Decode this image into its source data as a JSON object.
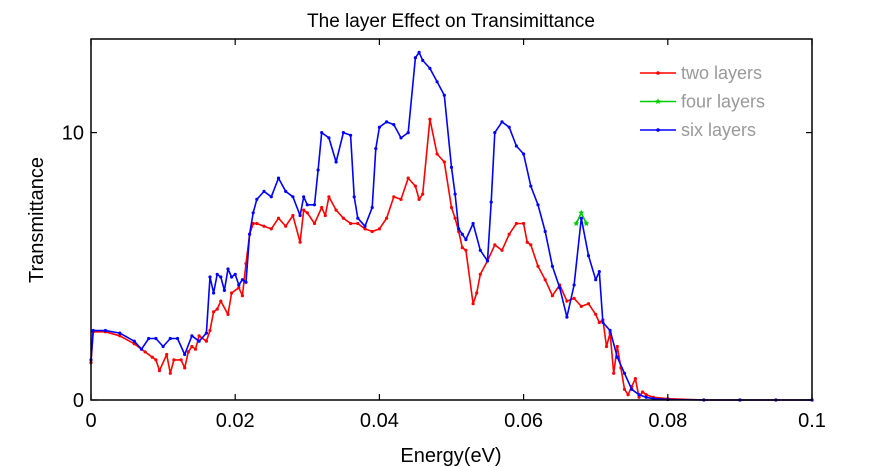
{
  "chart_data": {
    "type": "line",
    "title": "The layer Effect on Transimittance",
    "xlabel": "Energy(eV)",
    "ylabel": "Transmittance",
    "xlim": [
      0,
      0.1
    ],
    "ylim": [
      0,
      13.5
    ],
    "xticks": [
      {
        "value": 0,
        "label": "0"
      },
      {
        "value": 0.02,
        "label": "0.02"
      },
      {
        "value": 0.04,
        "label": "0.04"
      },
      {
        "value": 0.06,
        "label": "0.06"
      },
      {
        "value": 0.08,
        "label": "0.08"
      },
      {
        "value": 0.1,
        "label": "0.1"
      }
    ],
    "yticks": [
      {
        "value": 0,
        "label": "0"
      },
      {
        "value": 10,
        "label": "10"
      }
    ],
    "grid": false,
    "legend_position": "top-right",
    "series": [
      {
        "name": "two layers",
        "color": "#ff0000",
        "marker": "dot",
        "x": [
          0,
          0.0003,
          0.002,
          0.004,
          0.006,
          0.0075,
          0.0085,
          0.009,
          0.0095,
          0.0105,
          0.011,
          0.0115,
          0.0125,
          0.013,
          0.0135,
          0.014,
          0.0145,
          0.015,
          0.016,
          0.0165,
          0.017,
          0.0175,
          0.018,
          0.019,
          0.0195,
          0.0205,
          0.021,
          0.0215,
          0.022,
          0.0225,
          0.023,
          0.024,
          0.025,
          0.026,
          0.027,
          0.028,
          0.029,
          0.0295,
          0.03,
          0.031,
          0.032,
          0.0325,
          0.033,
          0.034,
          0.035,
          0.036,
          0.037,
          0.038,
          0.039,
          0.04,
          0.041,
          0.042,
          0.043,
          0.044,
          0.045,
          0.0455,
          0.046,
          0.047,
          0.048,
          0.049,
          0.05,
          0.0505,
          0.051,
          0.0515,
          0.052,
          0.053,
          0.0535,
          0.054,
          0.055,
          0.056,
          0.057,
          0.058,
          0.059,
          0.06,
          0.0605,
          0.061,
          0.062,
          0.063,
          0.064,
          0.065,
          0.066,
          0.067,
          0.068,
          0.069,
          0.07,
          0.0705,
          0.071,
          0.0715,
          0.072,
          0.0725,
          0.073,
          0.0735,
          0.074,
          0.0745,
          0.075,
          0.0755,
          0.076,
          0.0765,
          0.077,
          0.078,
          0.08,
          0.085,
          0.09,
          0.095,
          0.1
        ],
        "y": [
          1.4,
          2.55,
          2.55,
          2.4,
          2.1,
          1.8,
          1.6,
          1.5,
          1.1,
          1.7,
          1.0,
          1.5,
          1.5,
          1.2,
          1.8,
          2.0,
          1.9,
          2.4,
          2.2,
          2.6,
          3.3,
          3.4,
          3.7,
          3.2,
          4.0,
          4.2,
          3.9,
          5.1,
          6.2,
          6.6,
          6.6,
          6.5,
          6.4,
          6.8,
          6.5,
          6.9,
          5.9,
          7.1,
          7.0,
          6.6,
          7.2,
          6.9,
          7.6,
          7.1,
          6.8,
          6.6,
          6.6,
          6.4,
          6.3,
          6.4,
          6.8,
          7.6,
          7.5,
          8.3,
          8.0,
          7.5,
          7.7,
          10.5,
          9.2,
          8.9,
          7.2,
          6.8,
          6.3,
          5.7,
          5.6,
          3.6,
          4.0,
          4.7,
          5.2,
          5.8,
          5.6,
          6.2,
          6.6,
          6.6,
          5.9,
          5.8,
          5.0,
          4.5,
          3.9,
          4.3,
          3.7,
          3.8,
          3.5,
          3.6,
          3.2,
          2.9,
          3.0,
          2.0,
          2.5,
          1.0,
          2.0,
          1.2,
          0.4,
          0.2,
          0.5,
          0.8,
          0.1,
          0.3,
          0.2,
          0.1,
          0.05,
          0,
          0,
          0,
          0
        ]
      },
      {
        "name": "four layers",
        "color": "#00cc00",
        "marker": "star",
        "x": [
          0.0673,
          0.068,
          0.0687
        ],
        "y": [
          6.6,
          7.0,
          6.6
        ]
      },
      {
        "name": "six layers",
        "color": "#0000ff",
        "marker": "dot",
        "x": [
          0,
          0.0003,
          0.002,
          0.004,
          0.006,
          0.007,
          0.008,
          0.009,
          0.01,
          0.011,
          0.012,
          0.013,
          0.014,
          0.015,
          0.016,
          0.0165,
          0.017,
          0.0175,
          0.018,
          0.0185,
          0.019,
          0.0195,
          0.02,
          0.0205,
          0.021,
          0.0215,
          0.022,
          0.0225,
          0.023,
          0.024,
          0.025,
          0.026,
          0.027,
          0.028,
          0.029,
          0.0295,
          0.03,
          0.031,
          0.0315,
          0.032,
          0.033,
          0.034,
          0.035,
          0.036,
          0.0365,
          0.037,
          0.038,
          0.039,
          0.0395,
          0.04,
          0.041,
          0.042,
          0.043,
          0.044,
          0.045,
          0.0455,
          0.046,
          0.047,
          0.048,
          0.049,
          0.05,
          0.0505,
          0.051,
          0.0515,
          0.052,
          0.053,
          0.054,
          0.055,
          0.0555,
          0.056,
          0.057,
          0.058,
          0.059,
          0.06,
          0.061,
          0.062,
          0.063,
          0.064,
          0.065,
          0.066,
          0.067,
          0.068,
          0.069,
          0.07,
          0.0705,
          0.071,
          0.072,
          0.073,
          0.074,
          0.075,
          0.076,
          0.077,
          0.078,
          0.08,
          0.085,
          0.09,
          0.095,
          0.1
        ],
        "y": [
          1.5,
          2.6,
          2.6,
          2.5,
          2.2,
          1.9,
          2.3,
          2.3,
          2.0,
          2.3,
          2.3,
          1.7,
          2.4,
          2.2,
          2.5,
          4.6,
          4.0,
          4.7,
          4.6,
          4.1,
          4.9,
          4.6,
          4.7,
          4.3,
          4.5,
          4.4,
          6.2,
          7.0,
          7.5,
          7.8,
          7.6,
          8.3,
          7.8,
          7.6,
          6.9,
          7.6,
          7.3,
          7.3,
          8.6,
          10.0,
          9.8,
          8.9,
          10.0,
          9.9,
          7.6,
          6.8,
          6.5,
          7.2,
          9.4,
          10.2,
          10.4,
          10.3,
          9.8,
          10.0,
          12.8,
          13.0,
          12.7,
          12.4,
          11.9,
          11.4,
          8.7,
          7.7,
          6.4,
          6.2,
          6.0,
          6.6,
          5.6,
          5.2,
          7.4,
          10.0,
          10.4,
          10.2,
          9.5,
          9.2,
          8.0,
          7.3,
          6.3,
          5.0,
          4.2,
          3.1,
          4.3,
          6.8,
          5.4,
          4.5,
          4.8,
          2.9,
          2.6,
          1.6,
          1.0,
          0.4,
          0.2,
          0.1,
          0.05,
          0.02,
          0,
          0,
          0,
          0
        ]
      }
    ]
  }
}
